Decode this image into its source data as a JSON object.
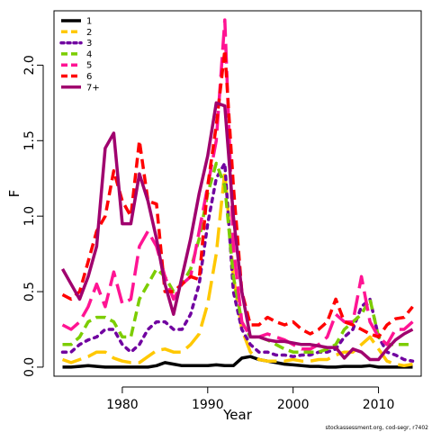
{
  "chart_data": {
    "type": "line",
    "xlabel": "Year",
    "ylabel": "F",
    "xlim": [
      1972,
      2015
    ],
    "ylim": [
      -0.06,
      2.36
    ],
    "x_ticks": [
      1980,
      1990,
      2000,
      2010
    ],
    "y_ticks": [
      0.0,
      0.5,
      1.0,
      1.5,
      2.0
    ],
    "y_tick_labels": [
      "0.0",
      "0.5",
      "1.0",
      "1.5",
      "2.0"
    ],
    "legend_position": "top-left",
    "x": [
      1973,
      1974,
      1975,
      1976,
      1977,
      1978,
      1979,
      1980,
      1981,
      1982,
      1983,
      1984,
      1985,
      1986,
      1987,
      1988,
      1989,
      1990,
      1991,
      1992,
      1993,
      1994,
      1995,
      1996,
      1997,
      1998,
      1999,
      2000,
      2001,
      2002,
      2003,
      2004,
      2005,
      2006,
      2007,
      2008,
      2009,
      2010,
      2011,
      2012,
      2013,
      2014
    ],
    "series": [
      {
        "name": "1",
        "color": "#000000",
        "dash": "solid",
        "values": [
          0.0,
          0.0,
          0.005,
          0.01,
          0.005,
          0.0,
          0.0,
          0.0,
          0.0,
          0.0,
          0.0,
          0.01,
          0.03,
          0.02,
          0.01,
          0.01,
          0.01,
          0.01,
          0.015,
          0.01,
          0.01,
          0.06,
          0.07,
          0.05,
          0.04,
          0.03,
          0.02,
          0.015,
          0.01,
          0.005,
          0.005,
          0.0,
          0.0,
          0.005,
          0.005,
          0.005,
          0.01,
          0.0,
          0.0,
          0.0,
          0.0,
          0.0
        ]
      },
      {
        "name": "2",
        "color": "#FFC800",
        "dash": "longdash",
        "values": [
          0.05,
          0.03,
          0.05,
          0.07,
          0.1,
          0.1,
          0.06,
          0.04,
          0.03,
          0.03,
          0.07,
          0.11,
          0.12,
          0.1,
          0.1,
          0.15,
          0.22,
          0.42,
          0.75,
          1.3,
          0.6,
          0.25,
          0.1,
          0.05,
          0.04,
          0.04,
          0.04,
          0.05,
          0.04,
          0.04,
          0.05,
          0.05,
          0.08,
          0.1,
          0.1,
          0.15,
          0.2,
          0.12,
          0.04,
          0.02,
          0.01,
          0.02
        ]
      },
      {
        "name": "3",
        "color": "#7000A0",
        "dash": "dot",
        "values": [
          0.1,
          0.1,
          0.15,
          0.18,
          0.2,
          0.25,
          0.25,
          0.15,
          0.1,
          0.15,
          0.25,
          0.3,
          0.3,
          0.25,
          0.25,
          0.35,
          0.55,
          0.95,
          1.25,
          1.35,
          0.5,
          0.25,
          0.15,
          0.1,
          0.1,
          0.08,
          0.08,
          0.07,
          0.08,
          0.08,
          0.1,
          0.1,
          0.12,
          0.2,
          0.25,
          0.4,
          0.45,
          0.2,
          0.1,
          0.08,
          0.05,
          0.04
        ]
      },
      {
        "name": "4",
        "color": "#7CCD00",
        "dash": "dash",
        "values": [
          0.15,
          0.15,
          0.2,
          0.3,
          0.33,
          0.33,
          0.3,
          0.2,
          0.2,
          0.45,
          0.55,
          0.65,
          0.6,
          0.5,
          0.55,
          0.65,
          0.85,
          1.15,
          1.35,
          1.2,
          0.6,
          0.3,
          0.2,
          0.2,
          0.18,
          0.15,
          0.12,
          0.1,
          0.1,
          0.1,
          0.1,
          0.12,
          0.15,
          0.25,
          0.3,
          0.35,
          0.45,
          0.2,
          0.15,
          0.15,
          0.15,
          0.15
        ]
      },
      {
        "name": "5",
        "color": "#FF1493",
        "dash": "longdash",
        "values": [
          0.28,
          0.25,
          0.3,
          0.4,
          0.55,
          0.4,
          0.63,
          0.42,
          0.45,
          0.8,
          0.9,
          0.8,
          0.6,
          0.45,
          0.55,
          0.6,
          0.9,
          1.2,
          1.5,
          2.3,
          0.8,
          0.3,
          0.2,
          0.2,
          0.22,
          0.2,
          0.18,
          0.15,
          0.12,
          0.12,
          0.15,
          0.2,
          0.35,
          0.3,
          0.3,
          0.6,
          0.3,
          0.2,
          0.15,
          0.25,
          0.25,
          0.3
        ]
      },
      {
        "name": "6",
        "color": "#FF0000",
        "dash": "dash",
        "values": [
          0.48,
          0.45,
          0.5,
          0.7,
          0.9,
          1.0,
          1.3,
          1.1,
          1.0,
          1.5,
          1.1,
          1.08,
          0.5,
          0.5,
          0.55,
          0.6,
          0.58,
          1.2,
          1.6,
          2.1,
          1.2,
          0.5,
          0.28,
          0.28,
          0.33,
          0.3,
          0.28,
          0.3,
          0.25,
          0.22,
          0.25,
          0.3,
          0.45,
          0.3,
          0.28,
          0.25,
          0.22,
          0.2,
          0.28,
          0.32,
          0.33,
          0.4
        ]
      },
      {
        "name": "7+",
        "color": "#A0006E",
        "dash": "solid",
        "values": [
          0.65,
          0.55,
          0.45,
          0.6,
          0.8,
          1.45,
          1.55,
          0.95,
          0.95,
          1.28,
          1.1,
          0.85,
          0.55,
          0.35,
          0.6,
          0.85,
          1.15,
          1.4,
          1.75,
          1.73,
          1.0,
          0.5,
          0.2,
          0.2,
          0.18,
          0.17,
          0.17,
          0.16,
          0.15,
          0.15,
          0.14,
          0.13,
          0.13,
          0.06,
          0.12,
          0.1,
          0.05,
          0.05,
          0.12,
          0.18,
          0.22,
          0.25
        ]
      }
    ]
  },
  "credit": "stockassessment.org, cod-segr, r7402"
}
